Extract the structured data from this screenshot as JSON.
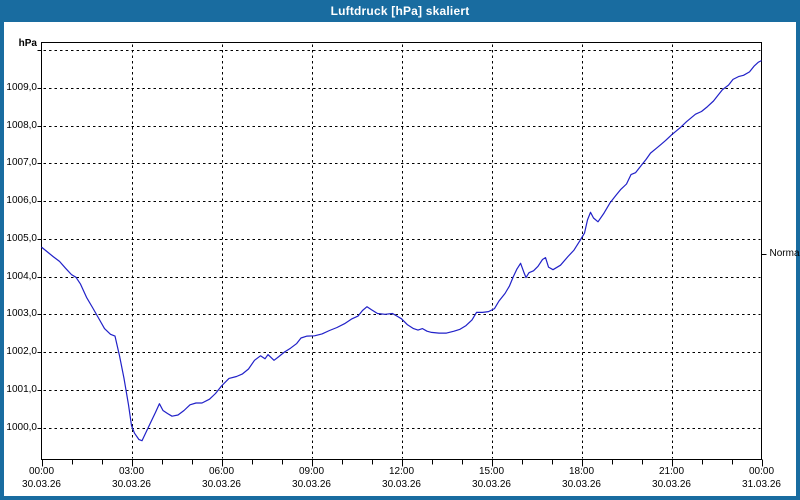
{
  "window": {
    "title": "Luftdruck [hPa] skaliert"
  },
  "colors": {
    "titlebar": "#196CA0",
    "frame": "#196CA0",
    "plot_background": "#FFFFFF",
    "grid": "#000000",
    "text": "#000000",
    "line": "#2121C8"
  },
  "chart_data": {
    "type": "line",
    "title": "Luftdruck [hPa] skaliert",
    "ylabel": "hPa",
    "xlabel": "",
    "xlim_hours": [
      0,
      24
    ],
    "ylim": [
      999.2,
      1010.2
    ],
    "grid": "dashed",
    "legend_position": "none",
    "y_gridlines": [
      1000,
      1001,
      1002,
      1003,
      1004,
      1005,
      1006,
      1007,
      1008,
      1009,
      1010
    ],
    "y_ticks": [
      {
        "value": 1009,
        "label": "1009,0"
      },
      {
        "value": 1008,
        "label": "1008,0"
      },
      {
        "value": 1007,
        "label": "1007,0"
      },
      {
        "value": 1006,
        "label": "1006,0"
      },
      {
        "value": 1005,
        "label": "1005,0"
      },
      {
        "value": 1004,
        "label": "1004,0"
      },
      {
        "value": 1003,
        "label": "1003,0"
      },
      {
        "value": 1002,
        "label": "1002,0"
      },
      {
        "value": 1001,
        "label": "1001,0"
      },
      {
        "value": 1000,
        "label": "1000,0"
      }
    ],
    "x_ticks": [
      {
        "hour": 0,
        "time": "00:00",
        "date": "30.03.26"
      },
      {
        "hour": 3,
        "time": "03:00",
        "date": "30.03.26"
      },
      {
        "hour": 6,
        "time": "06:00",
        "date": "30.03.26"
      },
      {
        "hour": 9,
        "time": "09:00",
        "date": "30.03.26"
      },
      {
        "hour": 12,
        "time": "12:00",
        "date": "30.03.26"
      },
      {
        "hour": 15,
        "time": "15:00",
        "date": "30.03.26"
      },
      {
        "hour": 18,
        "time": "18:00",
        "date": "30.03.26"
      },
      {
        "hour": 21,
        "time": "21:00",
        "date": "30.03.26"
      },
      {
        "hour": 24,
        "time": "00:00",
        "date": "31.03.26"
      }
    ],
    "minor_x_tick_every_hours": 1,
    "annotations": [
      {
        "label": "Normal",
        "value": 1004.6,
        "side": "right"
      }
    ],
    "series": [
      {
        "name": "Luftdruck",
        "color": "#2121C8",
        "x_hours": [
          0,
          0.2,
          0.4,
          0.6,
          0.8,
          1.0,
          1.15,
          1.3,
          1.5,
          1.7,
          1.9,
          2.1,
          2.3,
          2.45,
          2.6,
          2.75,
          2.9,
          3.0,
          3.1,
          3.25,
          3.35,
          3.5,
          3.65,
          3.8,
          3.93,
          4.05,
          4.2,
          4.35,
          4.55,
          4.75,
          4.95,
          5.15,
          5.35,
          5.6,
          5.8,
          6.0,
          6.25,
          6.5,
          6.7,
          6.9,
          7.1,
          7.3,
          7.45,
          7.55,
          7.75,
          7.9,
          8.1,
          8.3,
          8.5,
          8.65,
          8.85,
          9.1,
          9.35,
          9.6,
          9.85,
          10.1,
          10.35,
          10.55,
          10.7,
          10.85,
          11.0,
          11.2,
          11.45,
          11.7,
          11.85,
          12.0,
          12.2,
          12.4,
          12.55,
          12.7,
          12.85,
          13.0,
          13.25,
          13.5,
          13.75,
          13.95,
          14.15,
          14.35,
          14.5,
          14.7,
          14.9,
          15.1,
          15.25,
          15.45,
          15.6,
          15.73,
          15.85,
          15.97,
          16.07,
          16.15,
          16.25,
          16.4,
          16.55,
          16.7,
          16.8,
          16.9,
          17.05,
          17.3,
          17.55,
          17.75,
          17.95,
          18.1,
          18.2,
          18.3,
          18.4,
          18.55,
          18.75,
          18.95,
          19.15,
          19.3,
          19.5,
          19.65,
          19.8,
          20.0,
          20.15,
          20.3,
          20.5,
          20.65,
          20.8,
          21.0,
          21.15,
          21.3,
          21.5,
          21.65,
          21.8,
          22.0,
          22.2,
          22.4,
          22.55,
          22.7,
          22.9,
          23.05,
          23.25,
          23.4,
          23.6,
          23.75,
          23.9,
          24.0
        ],
        "y_hpa": [
          1004.78,
          1004.65,
          1004.52,
          1004.4,
          1004.22,
          1004.05,
          1003.98,
          1003.8,
          1003.45,
          1003.18,
          1002.9,
          1002.62,
          1002.47,
          1002.42,
          1001.9,
          1001.3,
          1000.6,
          1000.05,
          999.85,
          999.68,
          999.65,
          999.9,
          1000.15,
          1000.4,
          1000.63,
          1000.45,
          1000.37,
          1000.3,
          1000.33,
          1000.45,
          1000.6,
          1000.65,
          1000.65,
          1000.75,
          1000.9,
          1001.1,
          1001.3,
          1001.35,
          1001.42,
          1001.55,
          1001.78,
          1001.9,
          1001.82,
          1001.93,
          1001.78,
          1001.87,
          1002.0,
          1002.1,
          1002.22,
          1002.37,
          1002.42,
          1002.43,
          1002.48,
          1002.57,
          1002.65,
          1002.75,
          1002.88,
          1002.95,
          1003.1,
          1003.2,
          1003.12,
          1003.02,
          1003.0,
          1003.02,
          1002.95,
          1002.88,
          1002.72,
          1002.62,
          1002.58,
          1002.62,
          1002.55,
          1002.52,
          1002.5,
          1002.5,
          1002.55,
          1002.6,
          1002.7,
          1002.85,
          1003.05,
          1003.05,
          1003.07,
          1003.15,
          1003.35,
          1003.55,
          1003.75,
          1004.0,
          1004.2,
          1004.35,
          1004.13,
          1003.97,
          1004.1,
          1004.15,
          1004.27,
          1004.45,
          1004.5,
          1004.25,
          1004.18,
          1004.3,
          1004.53,
          1004.7,
          1004.95,
          1005.15,
          1005.5,
          1005.7,
          1005.55,
          1005.45,
          1005.68,
          1005.95,
          1006.15,
          1006.3,
          1006.45,
          1006.7,
          1006.75,
          1006.95,
          1007.1,
          1007.27,
          1007.4,
          1007.5,
          1007.6,
          1007.75,
          1007.85,
          1007.95,
          1008.1,
          1008.2,
          1008.3,
          1008.37,
          1008.5,
          1008.65,
          1008.8,
          1008.95,
          1009.07,
          1009.22,
          1009.3,
          1009.33,
          1009.42,
          1009.57,
          1009.68,
          1009.72
        ]
      }
    ]
  }
}
